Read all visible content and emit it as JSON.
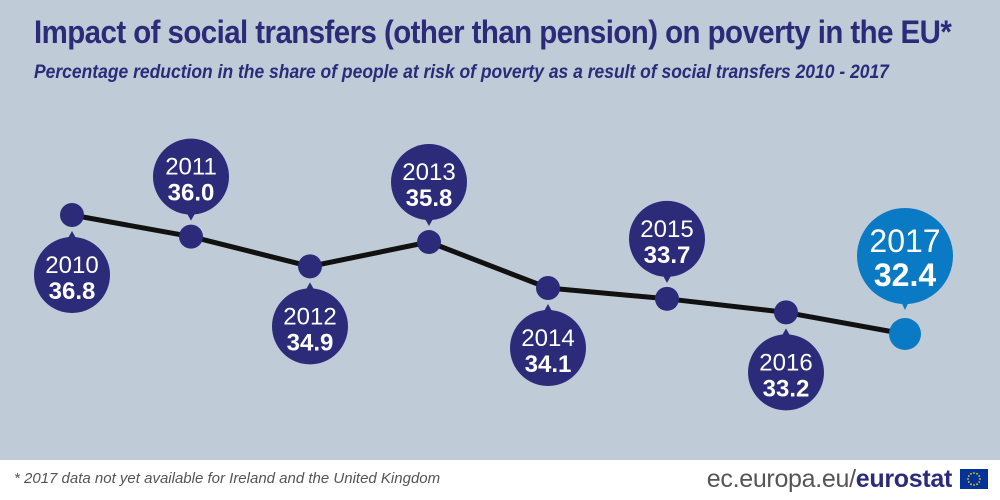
{
  "title": "Impact of social transfers (other than pension) on poverty in the EU*",
  "subtitle": "Percentage reduction in the share of people at risk of poverty as a result of social transfers 2010 - 2017",
  "chart_data": {
    "type": "line",
    "title": "Impact of social transfers (other than pension) on poverty in the EU*",
    "subtitle": "Percentage reduction in the share of people at risk of poverty as a result of social transfers 2010 - 2017",
    "xlabel": "",
    "ylabel": "",
    "grid": false,
    "legend": "none",
    "x": [
      "2010",
      "2011",
      "2012",
      "2013",
      "2014",
      "2015",
      "2016",
      "2017"
    ],
    "series": [
      {
        "name": "Reduction in at-risk-of-poverty share (%)",
        "values": [
          36.8,
          36.0,
          34.9,
          35.8,
          34.1,
          33.7,
          33.2,
          32.4
        ]
      }
    ],
    "value_labels": [
      "36.8",
      "36.0",
      "34.9",
      "35.8",
      "34.1",
      "33.7",
      "33.2",
      "32.4"
    ],
    "label_positions": [
      "below",
      "above",
      "below",
      "above",
      "below",
      "above",
      "below",
      "above"
    ],
    "highlight_year": "2017"
  },
  "colors": {
    "background": "#bfcbd6",
    "marker": "#2b2b7a",
    "highlight": "#0b7ac4",
    "line": "#111111",
    "title": "#2b2b7a",
    "bubble_text": "#ffffff",
    "eu_flag": "#003399",
    "eu_stars": "#ffcc00"
  },
  "footer": {
    "footnote": "* 2017 data not yet available  for Ireland and the United Kingdom",
    "site": "ec.europa.eu/",
    "brand": "eurostat",
    "flag_icon": "eu-flag-icon"
  }
}
